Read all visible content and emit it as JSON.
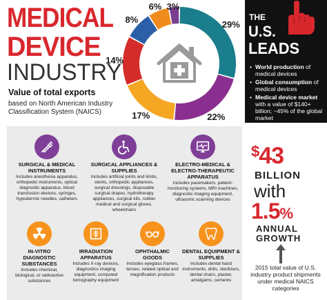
{
  "header": {
    "title_line1": "MEDICAL",
    "title_line2": "DEVICE",
    "title_line3": "INDUSTRY",
    "subtitle": "Value of total exports",
    "subtitle_detail": "based on North American Industry Classification System (NAICS)"
  },
  "chart_data": {
    "type": "pie",
    "variant": "donut",
    "center_icon": "hospital-house-icon",
    "slices": [
      {
        "label": "29%",
        "value": 29,
        "color": "#1b7e8c"
      },
      {
        "label": "22%",
        "value": 22,
        "color": "#8a2f8f"
      },
      {
        "label": "17%",
        "value": 17,
        "color": "#f5a623"
      },
      {
        "label": "14%",
        "value": 14,
        "color": "#d42b2b"
      },
      {
        "label": "8%",
        "value": 8,
        "color": "#2b5fa8"
      },
      {
        "label": "6%",
        "value": 6,
        "color": "#f08c1e"
      },
      {
        "label": "3%",
        "value": 3,
        "color": "#7a3f8f"
      }
    ]
  },
  "right_panel": {
    "the": "THE",
    "us": "U.S.",
    "leads": "LEADS",
    "bullets": [
      {
        "bold": "World production",
        "rest": " of medical devices"
      },
      {
        "bold": "Global consumption",
        "rest": " of medical devices"
      },
      {
        "bold": "Medical device market",
        "rest": " with a value of $140+ billion; ~45% of the global market"
      }
    ],
    "amount_symbol": "$",
    "amount_number": "43",
    "amount_unit": "BILLION",
    "with": "with",
    "rate_number": "1.5",
    "rate_symbol": "%",
    "rate_line1": "ANNUAL",
    "rate_line2": "GROWTH",
    "footnote": "2015 total value of U.S. industry product shipments under medical NAICS categories"
  },
  "categories": [
    {
      "title": "Surgical & Medical Instruments",
      "desc": "Includes anesthesia apparatus, orthopedic instruments, optical diagnostic apparatus, blood transfusion devices, syringes, hypodermic needles, catheters",
      "icon": "syringe-icon"
    },
    {
      "title": "Surgical Appliances & Supplies",
      "desc": "Includes artificial joints and limbs, stents, orthopedic appliances, surgical dressings, disposable surgical drapes, hydrotherapy appliances, surgical kits, rubber medical and surgical gloves, wheelchairs",
      "icon": "wheelchair-icon"
    },
    {
      "title": "Electro-Medical & Electro-Therapeutic Apparatus",
      "desc": "Includes pacemakers, patient-monitoring systems, MRI machines, diagnostic imaging equipment, ultrasonic scanning devices",
      "icon": "monitor-icon"
    },
    {
      "title": "In-Vitro Diagnostic Substances",
      "desc": "Includes chemical, biological, or radioactive substances",
      "icon": "radiation-icon"
    },
    {
      "title": "Irradiation Apparatus",
      "desc": "Includes X-ray devices, diagnostics imaging equipment, computed tomography equipment",
      "icon": "xray-icon"
    },
    {
      "title": "Ophthalmic Goods",
      "desc": "Includes eyeglass frames, lenses, related optical and magnification products",
      "icon": "eyeglasses-icon"
    },
    {
      "title": "Dental Equipment & Supplies",
      "desc": "Includes dental hand instruments, drills, sterilizers, dental chairs, plaster, amalgams, cements",
      "icon": "tooth-icon"
    }
  ],
  "colors": {
    "accent_red": "#d9272e",
    "panel_bg": "#ebebeb",
    "dark_bg": "#111111",
    "purple": "#7f3f98",
    "teal": "#1e7f8a",
    "orange": "#f7931d"
  }
}
